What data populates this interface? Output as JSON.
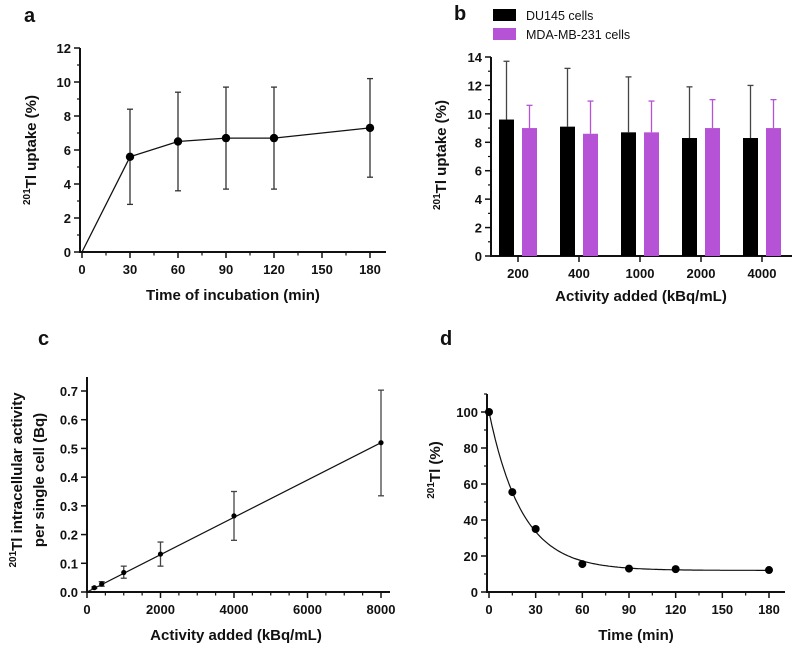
{
  "colors": {
    "axis": "#111111",
    "du145": "#000000",
    "mda": "#b552d6",
    "errbar_dark": "#444444"
  },
  "chart_data": [
    {
      "panel": "a",
      "type": "line",
      "xlabel": "Time of incubation (min)",
      "ylabel_sup": "201",
      "ylabel": "Tl uptake (%)",
      "xlim": [
        0,
        180
      ],
      "ylim": [
        0,
        12
      ],
      "xticks": [
        0,
        30,
        60,
        90,
        120,
        150,
        180
      ],
      "yticks": [
        0,
        2,
        4,
        6,
        8,
        10,
        12
      ],
      "x": [
        0,
        30,
        60,
        90,
        120,
        180
      ],
      "y": [
        0,
        5.6,
        6.5,
        6.7,
        6.7,
        7.3
      ],
      "err_low": [
        0,
        2.8,
        3.6,
        3.7,
        3.7,
        4.4
      ],
      "err_high": [
        0,
        8.4,
        9.4,
        9.7,
        9.7,
        10.2
      ]
    },
    {
      "panel": "b",
      "type": "bar",
      "xlabel": "Activity added (kBq/mL)",
      "ylabel_sup": "201",
      "ylabel": "Tl uptake (%)",
      "ylim": [
        0,
        14
      ],
      "yticks": [
        0,
        2,
        4,
        6,
        8,
        10,
        12,
        14
      ],
      "categories": [
        "200",
        "400",
        "1000",
        "2000",
        "4000"
      ],
      "legend_position": "top",
      "series": [
        {
          "name": "DU145 cells",
          "values": [
            9.6,
            9.1,
            8.7,
            8.3,
            8.3
          ],
          "err_high": [
            13.7,
            13.2,
            12.6,
            11.9,
            12.0
          ]
        },
        {
          "name": "MDA-MB-231 cells",
          "values": [
            9.0,
            8.6,
            8.7,
            9.0,
            9.0
          ],
          "err_high": [
            10.6,
            10.9,
            10.9,
            11.0,
            11.0
          ]
        }
      ]
    },
    {
      "panel": "c",
      "type": "scatter",
      "xlabel": "Activity added (kBq/mL)",
      "ylabel_sup": "201",
      "ylabel": "Tl intracellular activity",
      "ylabel2": "per single cell (Bq)",
      "xlim": [
        0,
        8000
      ],
      "ylim": [
        0,
        0.7
      ],
      "xticks": [
        0,
        2000,
        4000,
        6000,
        8000
      ],
      "yticks": [
        "0.0",
        "0.1",
        "0.2",
        "0.3",
        "0.4",
        "0.5",
        "0.6",
        "0.7"
      ],
      "x": [
        200,
        400,
        1000,
        2000,
        4000,
        8000
      ],
      "y": [
        0.015,
        0.028,
        0.068,
        0.132,
        0.265,
        0.52
      ],
      "err_low": [
        0.012,
        0.02,
        0.048,
        0.09,
        0.18,
        0.335
      ],
      "err_high": [
        0.018,
        0.036,
        0.09,
        0.174,
        0.35,
        0.703
      ],
      "fit": {
        "type": "linear",
        "slope": 6.5e-05,
        "intercept": 0
      }
    },
    {
      "panel": "d",
      "type": "scatter",
      "xlabel": "Time (min)",
      "ylabel_sup": "201",
      "ylabel": "Tl (%)",
      "xlim": [
        0,
        180
      ],
      "ylim": [
        0,
        110
      ],
      "xticks": [
        0,
        30,
        60,
        90,
        120,
        150,
        180
      ],
      "yticks": [
        0,
        20,
        40,
        60,
        80,
        100
      ],
      "x": [
        0,
        15,
        30,
        60,
        90,
        120,
        180
      ],
      "y": [
        100,
        55.5,
        35,
        15.5,
        13,
        12.7,
        12.2
      ],
      "fit": {
        "type": "one-phase-decay",
        "y0": 100,
        "plateau": 12,
        "k": 0.047
      }
    }
  ]
}
